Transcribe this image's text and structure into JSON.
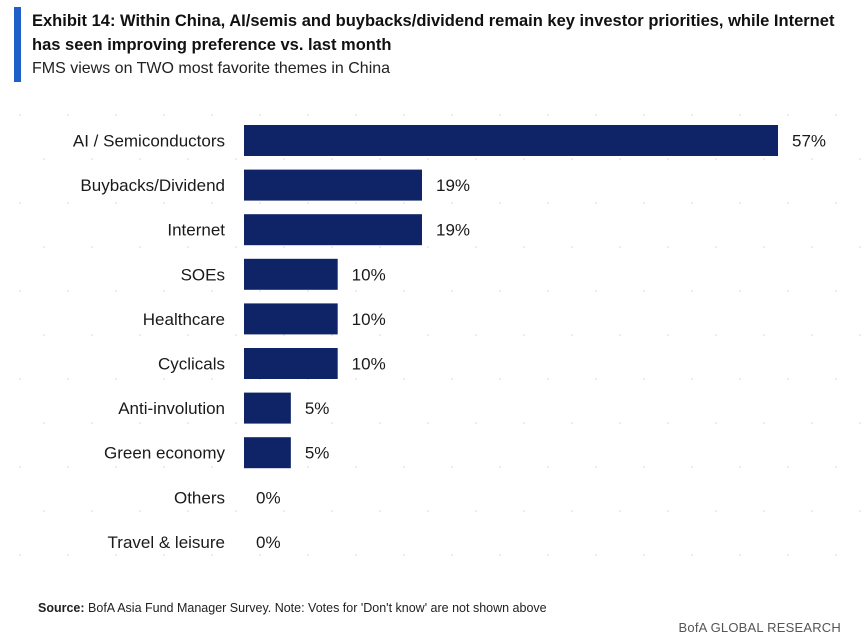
{
  "header": {
    "title": "Exhibit 14: Within China, AI/semis and buybacks/dividend remain key investor priorities, while Internet has seen improving preference vs. last month",
    "subtitle": "FMS views on TWO most favorite themes in China",
    "accent_color": "#1e5fc8"
  },
  "chart_data": {
    "type": "bar",
    "orientation": "horizontal",
    "title": "",
    "xlabel": "",
    "ylabel": "",
    "categories": [
      "AI / Semiconductors",
      "Buybacks/Dividend",
      "Internet",
      "SOEs",
      "Healthcare",
      "Cyclicals",
      "Anti-involution",
      "Green economy",
      "Others",
      "Travel & leisure"
    ],
    "values": [
      57,
      19,
      19,
      10,
      10,
      10,
      5,
      5,
      0,
      0
    ],
    "data_labels": [
      "57%",
      "19%",
      "19%",
      "10%",
      "10%",
      "10%",
      "5%",
      "5%",
      "0%",
      "0%"
    ],
    "unit": "%",
    "xlim": [
      0,
      57
    ],
    "grid": false,
    "legend": "none",
    "bar_color": "#0f2466"
  },
  "source": {
    "label": "Source:",
    "text": "BofA Asia Fund Manager Survey. Note: Votes for 'Don't know' are not shown above"
  },
  "footer": {
    "brand": "BofA GLOBAL RESEARCH"
  }
}
